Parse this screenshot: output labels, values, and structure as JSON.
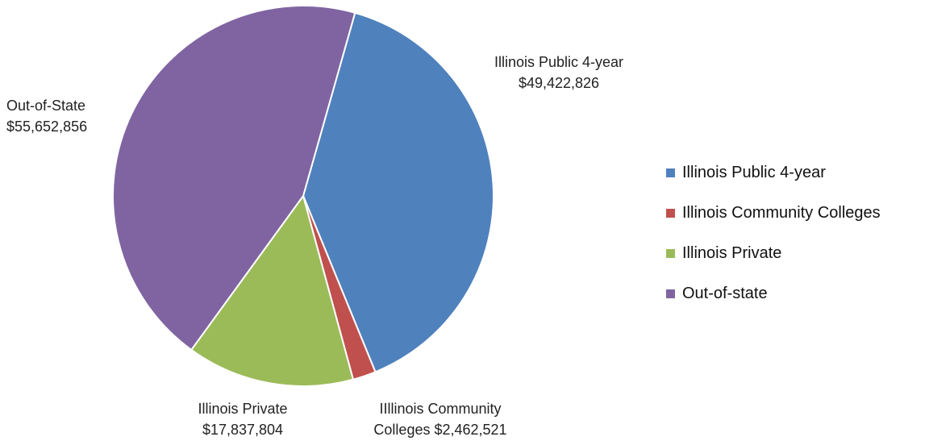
{
  "chart_data": {
    "type": "pie",
    "title": "",
    "slices": [
      {
        "label": "Illinois Public 4-year",
        "value": 49422826,
        "value_text": "$49,422,826",
        "color": "#4f81bd"
      },
      {
        "label": "Illinois Community Colleges",
        "value": 2462521,
        "value_text": "$2,462,521",
        "color": "#c0504d"
      },
      {
        "label": "Illinois Private",
        "value": 17837804,
        "value_text": "$17,837,804",
        "color": "#9bbb59"
      },
      {
        "label": "Out-of-state",
        "value": 55652856,
        "value_text": "$55,652,856",
        "color": "#8064a2"
      }
    ],
    "data_labels": [
      {
        "name": "Illinois Public 4-year",
        "value": "$49,422,826"
      },
      {
        "name": "IIllinois Community",
        "value": "Colleges $2,462,521"
      },
      {
        "name": "Illinois Private",
        "value": "$17,837,804"
      },
      {
        "name": "Out-of-State",
        "value": "$55,652,856"
      }
    ],
    "legend": {
      "position": "right",
      "entries": [
        "Illinois Public 4-year",
        "Illinois Community Colleges",
        "Illinois Private",
        "Out-of-state"
      ]
    }
  }
}
